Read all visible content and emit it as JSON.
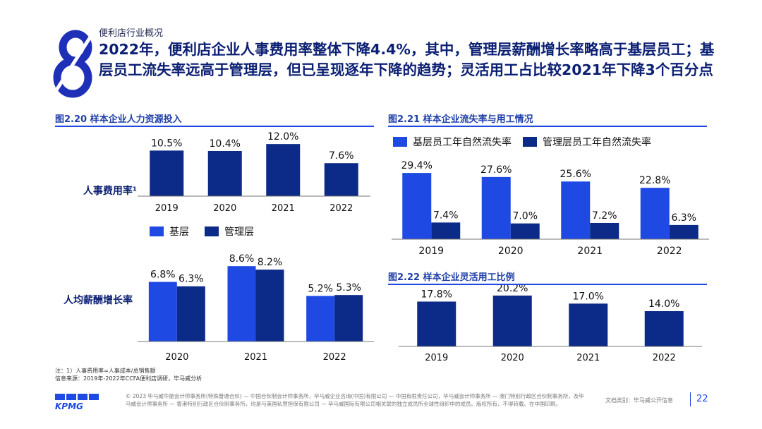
{
  "section": "便利店行业概况",
  "headline": "2022年，便利店企业人事费用率整体下降4.4%，其中，管理层薪酬增长率略高于基层员工；基层员工流失率远高于管理层，但已呈现逐年下降的趋势；灵活用工占比较2021年下降3个百分点",
  "colors": {
    "primary": "#1e49e2",
    "navy": "#0c2a87",
    "title": "#0b1f73"
  },
  "fig220": {
    "title": "图2.20 样本企业人力资源投入",
    "row1_label": "人事费用率¹",
    "row2_label": "人均薪酬增长率",
    "legend": [
      "基层",
      "管理层"
    ]
  },
  "fig221": {
    "title": "图2.21 样本企业流失率与用工情况",
    "legend": [
      "基层员工年自然流失率",
      "管理层员工年自然流失率"
    ]
  },
  "fig222": {
    "title": "图2.22 样本企业灵活用工比例"
  },
  "chart_data": [
    {
      "id": "hr_cost_rate",
      "type": "bar",
      "title": "人事费用率¹",
      "categories": [
        "2019",
        "2020",
        "2021",
        "2022"
      ],
      "values": [
        10.5,
        10.4,
        12.0,
        7.6
      ],
      "labels": [
        "10.5%",
        "10.4%",
        "12.0%",
        "7.6%"
      ],
      "ylim": [
        0,
        13
      ]
    },
    {
      "id": "salary_growth",
      "type": "bar",
      "title": "人均薪酬增长率",
      "categories": [
        "2020",
        "2021",
        "2022"
      ],
      "series": [
        {
          "name": "基层",
          "values": [
            6.8,
            8.6,
            5.2
          ],
          "labels": [
            "6.8%",
            "8.6%",
            "5.2%"
          ]
        },
        {
          "name": "管理层",
          "values": [
            6.3,
            8.2,
            5.3
          ],
          "labels": [
            "6.3%",
            "8.2%",
            "5.3%"
          ]
        }
      ],
      "ylim": [
        0,
        9.5
      ]
    },
    {
      "id": "turnover",
      "type": "bar",
      "title": "样本企业流失率与用工情况",
      "categories": [
        "2019",
        "2020",
        "2021",
        "2022"
      ],
      "series": [
        {
          "name": "基层员工年自然流失率",
          "values": [
            29.4,
            27.6,
            25.6,
            22.8
          ],
          "labels": [
            "29.4%",
            "27.6%",
            "25.6%",
            "22.8%"
          ]
        },
        {
          "name": "管理层员工年自然流失率",
          "values": [
            7.4,
            7.0,
            7.2,
            6.3
          ],
          "labels": [
            "7.4%",
            "7.0%",
            "7.2%",
            "6.3%"
          ]
        }
      ],
      "ylim": [
        0,
        31
      ]
    },
    {
      "id": "flex_employment",
      "type": "bar",
      "title": "样本企业灵活用工比例",
      "categories": [
        "2019",
        "2020",
        "2021",
        "2022"
      ],
      "values": [
        17.8,
        20.2,
        17.0,
        14.0
      ],
      "labels": [
        "17.8%",
        "20.2%",
        "17.0%",
        "14.0%"
      ],
      "ylim": [
        0,
        21
      ]
    }
  ],
  "notes": {
    "line1": "注：1）人事费用率=人事成本/总销售额",
    "line2": "信息来源：2019年-2022年CCFA便利店调研，毕马威分析"
  },
  "footer": {
    "copyright": "© 2023 毕马威华振会计师事务所(特殊普通合伙) — 中国合伙制会计师事务所，毕马威企业咨询(中国)有限公司 — 中国有限责任公司，毕马威会计师事务所 — 澳门特别行政区合伙制事务所，及毕马威会计师事务所 — 香港特别行政区合伙制事务所，均是与英国私营担保有限公司 — 毕马威国际有限公司相关联的独立成员所全球性组织中的成员。版权所有，不得转载。在中国印刷。",
    "doc_class": "文档类别：毕马威公开信息",
    "page": "22",
    "logo": "KPMG"
  }
}
